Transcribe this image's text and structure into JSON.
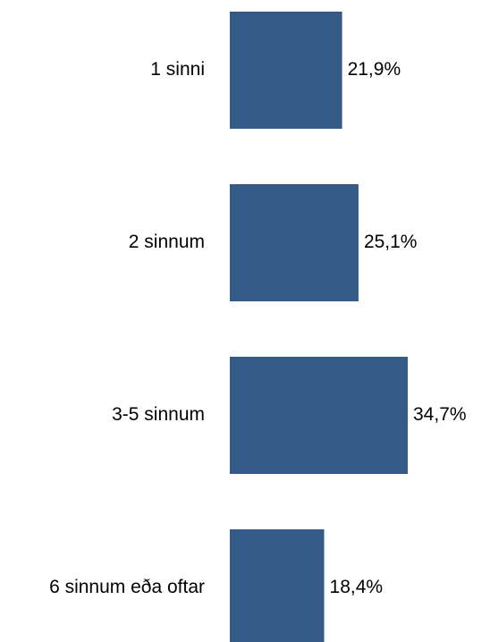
{
  "chart_data": {
    "type": "bar",
    "orientation": "horizontal",
    "categories": [
      "1 sinni",
      "2 sinnum",
      "3-5 sinnum",
      "6 sinnum eða oftar"
    ],
    "values": [
      21.9,
      25.1,
      34.7,
      18.4
    ],
    "value_labels": [
      "21,9%",
      "25,1%",
      "34,7%",
      "18,4%"
    ],
    "title": "",
    "xlabel": "",
    "ylabel": "",
    "xlim": [
      0,
      34.7
    ],
    "grid": false,
    "legend": "none",
    "bar_color": "#355A87"
  }
}
